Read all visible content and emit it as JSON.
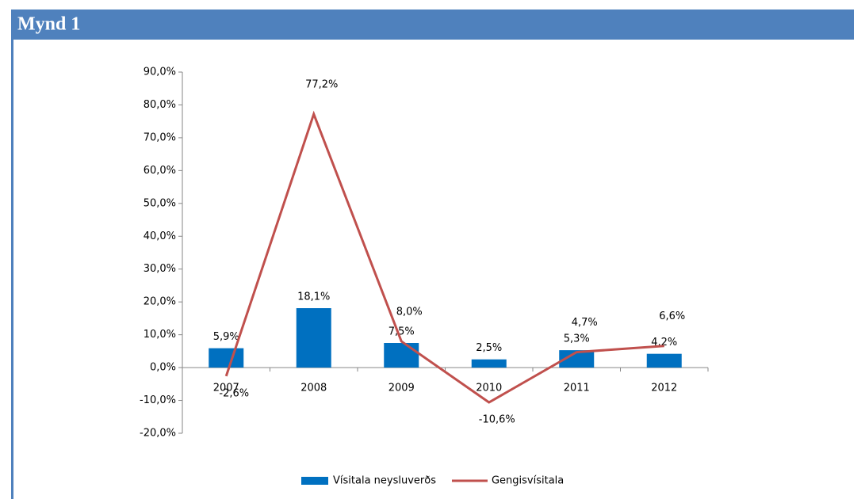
{
  "header": {
    "title": "Mynd 1"
  },
  "chart_data": {
    "type": "bar_line",
    "categories": [
      "2007",
      "2008",
      "2009",
      "2010",
      "2011",
      "2012"
    ],
    "series": [
      {
        "name": "Vísitala neysluverðs",
        "type": "bar",
        "color": "#0070c0",
        "values": [
          5.9,
          18.1,
          7.5,
          2.5,
          5.3,
          4.2
        ],
        "value_labels": [
          "5,9%",
          "18,1%",
          "7,5%",
          "2,5%",
          "5,3%",
          "4,2%"
        ]
      },
      {
        "name": "Gengisvísitala",
        "type": "line",
        "color": "#c0504d",
        "values": [
          -2.6,
          77.2,
          8.0,
          -10.6,
          4.7,
          6.6
        ],
        "value_labels": [
          "-2,6%",
          "77,2%",
          "8,0%",
          "-10,6%",
          "4,7%",
          "6,6%"
        ]
      }
    ],
    "ylim": [
      -20,
      90
    ],
    "yticks": [
      {
        "value": -20,
        "label": "-20,0%"
      },
      {
        "value": -10,
        "label": "-10,0%"
      },
      {
        "value": 0,
        "label": "0,0%"
      },
      {
        "value": 10,
        "label": "10,0%"
      },
      {
        "value": 20,
        "label": "20,0%"
      },
      {
        "value": 30,
        "label": "30,0%"
      },
      {
        "value": 40,
        "label": "40,0%"
      },
      {
        "value": 50,
        "label": "50,0%"
      },
      {
        "value": 60,
        "label": "60,0%"
      },
      {
        "value": 70,
        "label": "70,0%"
      },
      {
        "value": 80,
        "label": "80,0%"
      },
      {
        "value": 90,
        "label": "90,0%"
      }
    ],
    "legend": "bottom"
  }
}
